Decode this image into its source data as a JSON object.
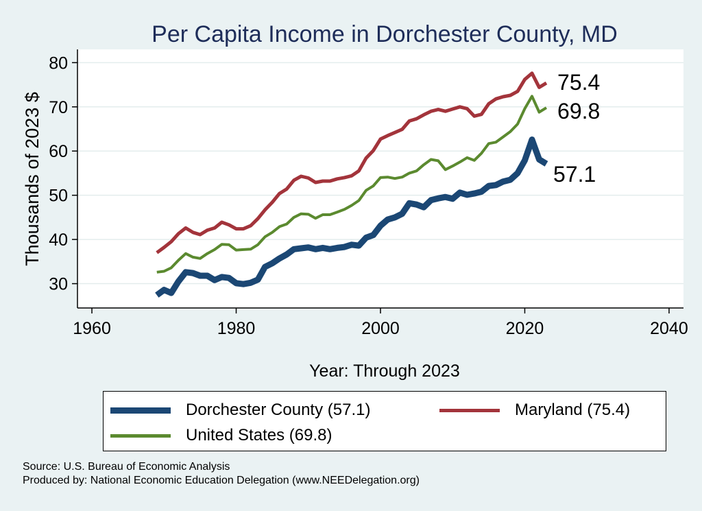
{
  "chart_data": {
    "type": "line",
    "title": "Per Capita Income in Dorchester County, MD",
    "xlabel": "Year: Through 2023",
    "ylabel": "Thousands of 2023 $",
    "xlim": [
      1958,
      2042
    ],
    "ylim": [
      24.5,
      83
    ],
    "xticks": [
      1960,
      1980,
      2000,
      2020,
      2040
    ],
    "yticks": [
      30,
      40,
      50,
      60,
      70,
      80
    ],
    "grid": true,
    "legend_position": "bottom",
    "x": [
      1969,
      1970,
      1971,
      1972,
      1973,
      1974,
      1975,
      1976,
      1977,
      1978,
      1979,
      1980,
      1981,
      1982,
      1983,
      1984,
      1985,
      1986,
      1987,
      1988,
      1989,
      1990,
      1991,
      1992,
      1993,
      1994,
      1995,
      1996,
      1997,
      1998,
      1999,
      2000,
      2001,
      2002,
      2003,
      2004,
      2005,
      2006,
      2007,
      2008,
      2009,
      2010,
      2011,
      2012,
      2013,
      2014,
      2015,
      2016,
      2017,
      2018,
      2019,
      2020,
      2021,
      2022,
      2023
    ],
    "series": [
      {
        "name": "Maryland (75.4)",
        "color": "#a3343b",
        "end_label": "75.4",
        "values": [
          37.0,
          38.2,
          39.5,
          41.3,
          42.6,
          41.6,
          41.1,
          42.1,
          42.6,
          43.9,
          43.3,
          42.4,
          42.4,
          43.1,
          44.7,
          46.7,
          48.4,
          50.4,
          51.4,
          53.4,
          54.3,
          53.9,
          52.9,
          53.2,
          53.2,
          53.7,
          54.0,
          54.4,
          55.5,
          58.4,
          60.1,
          62.7,
          63.5,
          64.2,
          64.9,
          66.8,
          67.3,
          68.2,
          69.0,
          69.4,
          69.0,
          69.5,
          70.0,
          69.6,
          67.9,
          68.3,
          70.7,
          71.8,
          72.3,
          72.6,
          73.5,
          76.2,
          77.6,
          74.4,
          75.4
        ]
      },
      {
        "name": "United States (69.8)",
        "color": "#5b8a2f",
        "end_label": "69.8",
        "values": [
          32.6,
          32.8,
          33.6,
          35.3,
          36.8,
          36.0,
          35.7,
          36.8,
          37.7,
          38.9,
          38.8,
          37.6,
          37.7,
          37.8,
          38.8,
          40.6,
          41.6,
          42.9,
          43.5,
          45.0,
          45.8,
          45.7,
          44.8,
          45.6,
          45.6,
          46.2,
          46.8,
          47.7,
          48.8,
          51.1,
          52.1,
          54.0,
          54.1,
          53.8,
          54.1,
          55.0,
          55.5,
          56.9,
          58.1,
          57.8,
          55.8,
          56.6,
          57.5,
          58.5,
          57.9,
          59.5,
          61.7,
          62.0,
          63.2,
          64.4,
          66.1,
          69.6,
          72.4,
          68.8,
          69.8
        ]
      },
      {
        "name": "Dorchester County (57.1)",
        "color": "#1b4774",
        "end_label": "57.1",
        "values": [
          27.4,
          28.6,
          27.9,
          30.5,
          32.6,
          32.4,
          31.8,
          31.8,
          30.8,
          31.5,
          31.3,
          30.1,
          29.9,
          30.2,
          30.9,
          33.8,
          34.6,
          35.7,
          36.6,
          37.8,
          38.0,
          38.2,
          37.8,
          38.1,
          37.8,
          38.1,
          38.3,
          38.8,
          38.6,
          40.4,
          41.0,
          43.1,
          44.5,
          45.0,
          45.8,
          48.2,
          47.9,
          47.3,
          48.9,
          49.3,
          49.6,
          49.2,
          50.6,
          50.1,
          50.4,
          50.8,
          52.1,
          52.3,
          53.1,
          53.5,
          55.0,
          57.9,
          62.6,
          58.1,
          57.1
        ]
      }
    ]
  },
  "legend": {
    "items": [
      {
        "label": "Dorchester County (57.1)",
        "color": "#1b4774"
      },
      {
        "label": "Maryland (75.4)",
        "color": "#a3343b"
      },
      {
        "label": "United States (69.8)",
        "color": "#5b8a2f"
      }
    ]
  },
  "footer": {
    "source": "Source: U.S. Bureau of Economic Analysis",
    "produced_by": "Produced by: National Economic Education Delegation (www.NEEDelegation.org)"
  }
}
